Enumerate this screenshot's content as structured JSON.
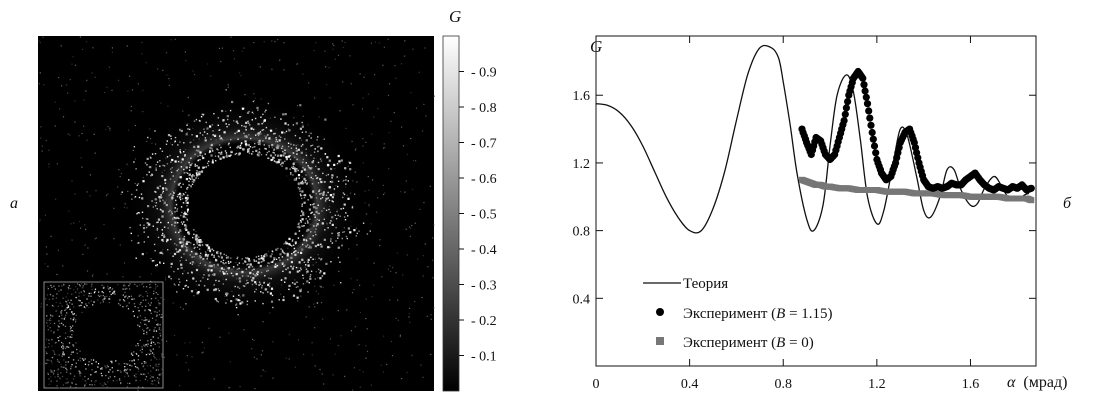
{
  "panel_a": {
    "label": "a",
    "colorbar_title": "G",
    "colorbar_ticks": [
      "0.9",
      "0.8",
      "0.7",
      "0.6",
      "0.5",
      "0.4",
      "0.3",
      "0.2",
      "0.1"
    ],
    "colorbar_tick_values": [
      0.9,
      0.8,
      0.7,
      0.6,
      0.5,
      0.4,
      0.3,
      0.2,
      0.1
    ],
    "colorbar_range": [
      0,
      1
    ],
    "description_colors": {
      "background": "#000000",
      "speckle": "#ffffff"
    }
  },
  "panel_b": {
    "label": "б",
    "ylabel": "G",
    "xlabel_symbol": "α",
    "xlabel_unit": "(мрад)",
    "x_ticks": [
      "0",
      "0.4",
      "0.8",
      "1.2",
      "1.6"
    ],
    "x_tick_values": [
      0,
      0.4,
      0.8,
      1.2,
      1.6
    ],
    "y_ticks": [
      "0.4",
      "0.8",
      "1.2",
      "1.6"
    ],
    "y_tick_values": [
      0.4,
      0.8,
      1.2,
      1.6
    ],
    "legend": {
      "theory": "Теория",
      "exp1_prefix": "Эксперимент (",
      "exp1_var": "B",
      "exp1_suffix": " = 1.15)",
      "exp2_prefix": "Эксперимент (",
      "exp2_var": "B",
      "exp2_suffix": " = 0)"
    }
  },
  "chart_data": {
    "type": "line",
    "xlim": [
      0,
      1.88
    ],
    "ylim": [
      0.0,
      1.95
    ],
    "series": [
      {
        "name": "Теория",
        "color": "#111111",
        "style": "line",
        "x": [
          0,
          0.05,
          0.1,
          0.15,
          0.2,
          0.25,
          0.3,
          0.35,
          0.4,
          0.45,
          0.5,
          0.55,
          0.6,
          0.65,
          0.7,
          0.75,
          0.78,
          0.8,
          0.83,
          0.86,
          0.9,
          0.93,
          0.97,
          1.0,
          1.03,
          1.07,
          1.1,
          1.13,
          1.16,
          1.2,
          1.23,
          1.27,
          1.3,
          1.33,
          1.37,
          1.4,
          1.43,
          1.47,
          1.5,
          1.53,
          1.56,
          1.6,
          1.63,
          1.66,
          1.7,
          1.73,
          1.76,
          1.8,
          1.83,
          1.85
        ],
        "y": [
          1.55,
          1.54,
          1.5,
          1.42,
          1.3,
          1.15,
          1.0,
          0.88,
          0.8,
          0.8,
          0.93,
          1.15,
          1.45,
          1.73,
          1.88,
          1.88,
          1.82,
          1.68,
          1.42,
          1.13,
          0.87,
          0.8,
          0.95,
          1.3,
          1.6,
          1.72,
          1.62,
          1.33,
          1.0,
          0.84,
          0.92,
          1.2,
          1.4,
          1.36,
          1.12,
          0.92,
          0.88,
          1.0,
          1.16,
          1.16,
          1.04,
          0.95,
          0.96,
          1.05,
          1.12,
          1.07,
          1.0,
          0.98,
          1.01,
          1.02
        ]
      },
      {
        "name": "Эксперимент (B = 1.15)",
        "color": "#000000",
        "style": "markers",
        "x": [
          0.88,
          0.9,
          0.92,
          0.94,
          0.96,
          0.98,
          1.0,
          1.02,
          1.04,
          1.06,
          1.08,
          1.1,
          1.12,
          1.14,
          1.16,
          1.18,
          1.2,
          1.22,
          1.24,
          1.26,
          1.28,
          1.3,
          1.32,
          1.34,
          1.36,
          1.38,
          1.4,
          1.42,
          1.44,
          1.46,
          1.48,
          1.5,
          1.52,
          1.54,
          1.56,
          1.58,
          1.6,
          1.62,
          1.64,
          1.66,
          1.68,
          1.7,
          1.72,
          1.74,
          1.76,
          1.78,
          1.8,
          1.82,
          1.84,
          1.86
        ],
        "y": [
          1.4,
          1.32,
          1.25,
          1.35,
          1.33,
          1.25,
          1.22,
          1.25,
          1.35,
          1.45,
          1.6,
          1.7,
          1.74,
          1.7,
          1.55,
          1.38,
          1.22,
          1.14,
          1.1,
          1.12,
          1.2,
          1.32,
          1.38,
          1.4,
          1.32,
          1.2,
          1.1,
          1.06,
          1.05,
          1.06,
          1.05,
          1.06,
          1.08,
          1.07,
          1.07,
          1.1,
          1.12,
          1.14,
          1.1,
          1.07,
          1.05,
          1.04,
          1.06,
          1.05,
          1.04,
          1.06,
          1.05,
          1.07,
          1.04,
          1.05
        ]
      },
      {
        "name": "Эксперимент (B = 0)",
        "color": "#777777",
        "style": "markers",
        "x": [
          0.88,
          0.9,
          0.92,
          0.94,
          0.96,
          0.98,
          1.0,
          1.04,
          1.08,
          1.12,
          1.16,
          1.2,
          1.24,
          1.28,
          1.32,
          1.36,
          1.4,
          1.44,
          1.48,
          1.52,
          1.56,
          1.6,
          1.64,
          1.68,
          1.72,
          1.76,
          1.8,
          1.84,
          1.86
        ],
        "y": [
          1.1,
          1.09,
          1.08,
          1.07,
          1.07,
          1.06,
          1.06,
          1.05,
          1.05,
          1.04,
          1.04,
          1.04,
          1.03,
          1.03,
          1.03,
          1.02,
          1.02,
          1.02,
          1.01,
          1.01,
          1.01,
          1.0,
          1.0,
          1.0,
          1.0,
          0.99,
          0.99,
          0.99,
          0.98
        ]
      }
    ]
  }
}
